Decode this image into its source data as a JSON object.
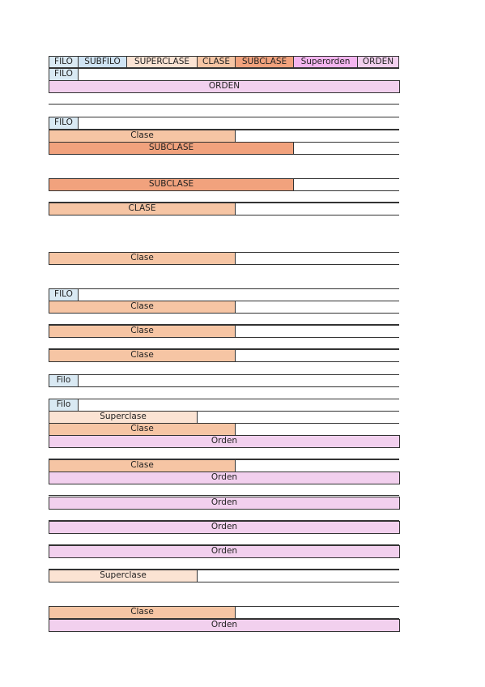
{
  "colors": {
    "filo": "#d9e9f3",
    "subfilo": "#cfe3f3",
    "superclase": "#fbe3d3",
    "clase": "#f6c5a4",
    "subclase": "#f1a27d",
    "superorden": "#f3b5ef",
    "orden": "#f2d0ee"
  },
  "header": [
    {
      "key": "filo",
      "label": "FILO"
    },
    {
      "key": "subfilo",
      "label": "SUBFILO"
    },
    {
      "key": "superclase",
      "label": "SUPERCLASE"
    },
    {
      "key": "clase",
      "label": "CLASE"
    },
    {
      "key": "subclase",
      "label": "SUBCLASE"
    },
    {
      "key": "superorden",
      "label": "Superorden"
    },
    {
      "key": "orden",
      "label": "ORDEN"
    }
  ],
  "rows": [
    {
      "type": "filo",
      "label": "FILO"
    },
    {
      "type": "orden",
      "label": "ORDEN"
    },
    {
      "type": "empty"
    },
    {
      "type": "gap"
    },
    {
      "type": "filo",
      "label": "FILO"
    },
    {
      "type": "clase",
      "label": "Clase"
    },
    {
      "type": "subclase",
      "label": "SUBCLASE"
    },
    {
      "type": "gap"
    },
    {
      "type": "gap"
    },
    {
      "type": "subclase",
      "label": "SUBCLASE"
    },
    {
      "type": "empty"
    },
    {
      "type": "clase",
      "label": "CLASE"
    },
    {
      "type": "gap"
    },
    {
      "type": "gap"
    },
    {
      "type": "gap"
    },
    {
      "type": "clase",
      "label": "Clase"
    },
    {
      "type": "gap"
    },
    {
      "type": "gap"
    },
    {
      "type": "filo",
      "label": "FILO"
    },
    {
      "type": "clase",
      "label": "Clase"
    },
    {
      "type": "empty"
    },
    {
      "type": "clase",
      "label": "Clase"
    },
    {
      "type": "empty"
    },
    {
      "type": "clase",
      "label": "Clase"
    },
    {
      "type": "gap"
    },
    {
      "type": "filo",
      "label": "Filo"
    },
    {
      "type": "gap"
    },
    {
      "type": "filo",
      "label": "Filo"
    },
    {
      "type": "superclase",
      "label": "Superclase"
    },
    {
      "type": "clase",
      "label": "Clase"
    },
    {
      "type": "orden",
      "label": "Orden"
    },
    {
      "type": "empty"
    },
    {
      "type": "clase",
      "label": "Clase"
    },
    {
      "type": "orden",
      "label": "Orden"
    },
    {
      "type": "empty"
    },
    {
      "type": "orden",
      "label": "Orden"
    },
    {
      "type": "empty"
    },
    {
      "type": "orden",
      "label": "Orden"
    },
    {
      "type": "empty"
    },
    {
      "type": "orden",
      "label": "Orden"
    },
    {
      "type": "empty"
    },
    {
      "type": "superclase",
      "label": "Superclase"
    },
    {
      "type": "gap"
    },
    {
      "type": "gap"
    },
    {
      "type": "clase",
      "label": "Clase"
    },
    {
      "type": "orden",
      "label": "Orden"
    }
  ]
}
